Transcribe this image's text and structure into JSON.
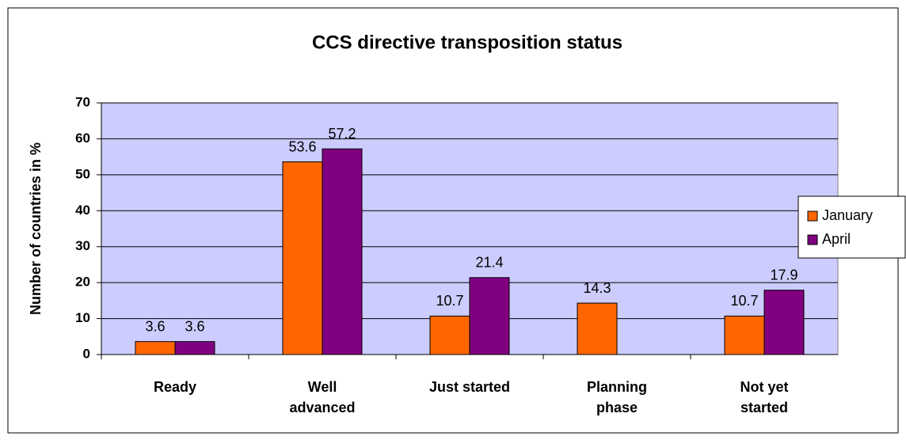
{
  "chart_data": {
    "type": "bar",
    "title": "CCS directive transposition status",
    "y_label": "Number of countries in %",
    "categories": [
      "Ready",
      "Well\nadvanced",
      "Just started",
      "Planning\nphase",
      "Not yet\nstarted"
    ],
    "series": [
      {
        "name": "January",
        "color": "#ff6600",
        "values": [
          3.6,
          53.6,
          10.7,
          14.3,
          10.7
        ]
      },
      {
        "name": "April",
        "color": "#800080",
        "values": [
          3.6,
          57.2,
          21.4,
          null,
          17.9
        ]
      }
    ],
    "ylim": [
      0,
      70
    ],
    "yticks": [
      0,
      10,
      20,
      30,
      40,
      50,
      60,
      70
    ],
    "grid": true,
    "legend": "right",
    "plot_background": "#ccccff"
  }
}
